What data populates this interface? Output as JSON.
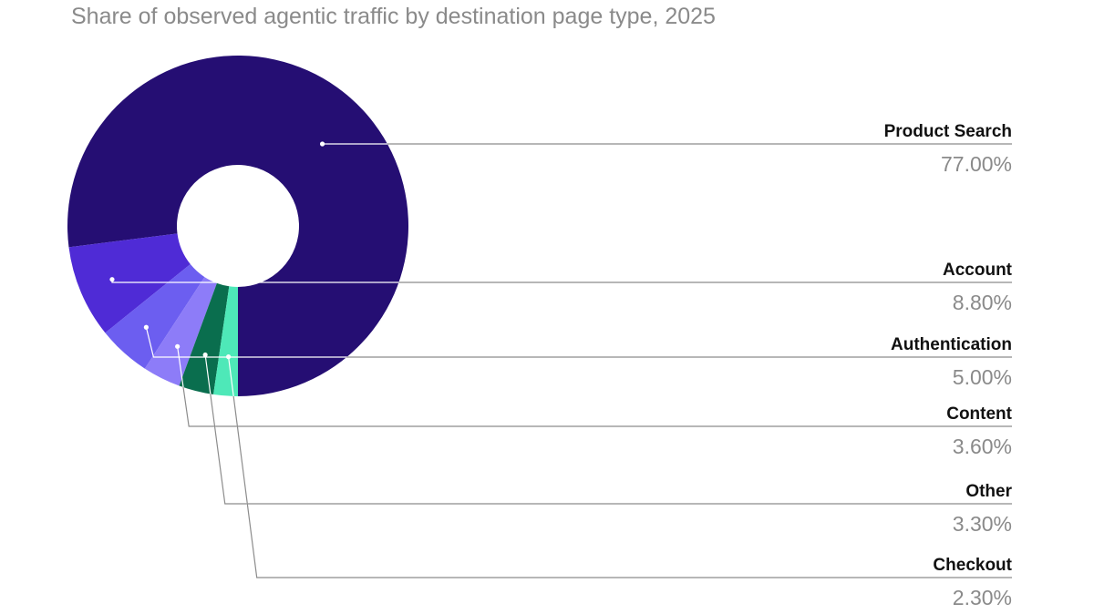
{
  "chart_data": {
    "type": "pie",
    "title": "Share of observed agentic traffic by destination page type, 2025",
    "categories": [
      "Product Search",
      "Account",
      "Authentication",
      "Content",
      "Other",
      "Checkout"
    ],
    "values": [
      77.0,
      8.8,
      5.0,
      3.6,
      3.3,
      2.3
    ],
    "value_labels": [
      "77.00%",
      "8.80%",
      "5.00%",
      "3.60%",
      "3.30%",
      "2.30%"
    ],
    "colors": [
      "#250e73",
      "#4f2bd6",
      "#6c5ef0",
      "#8d7cf8",
      "#0a6e4e",
      "#4ee8b8"
    ],
    "donut": true,
    "legend": "right-side callouts"
  }
}
